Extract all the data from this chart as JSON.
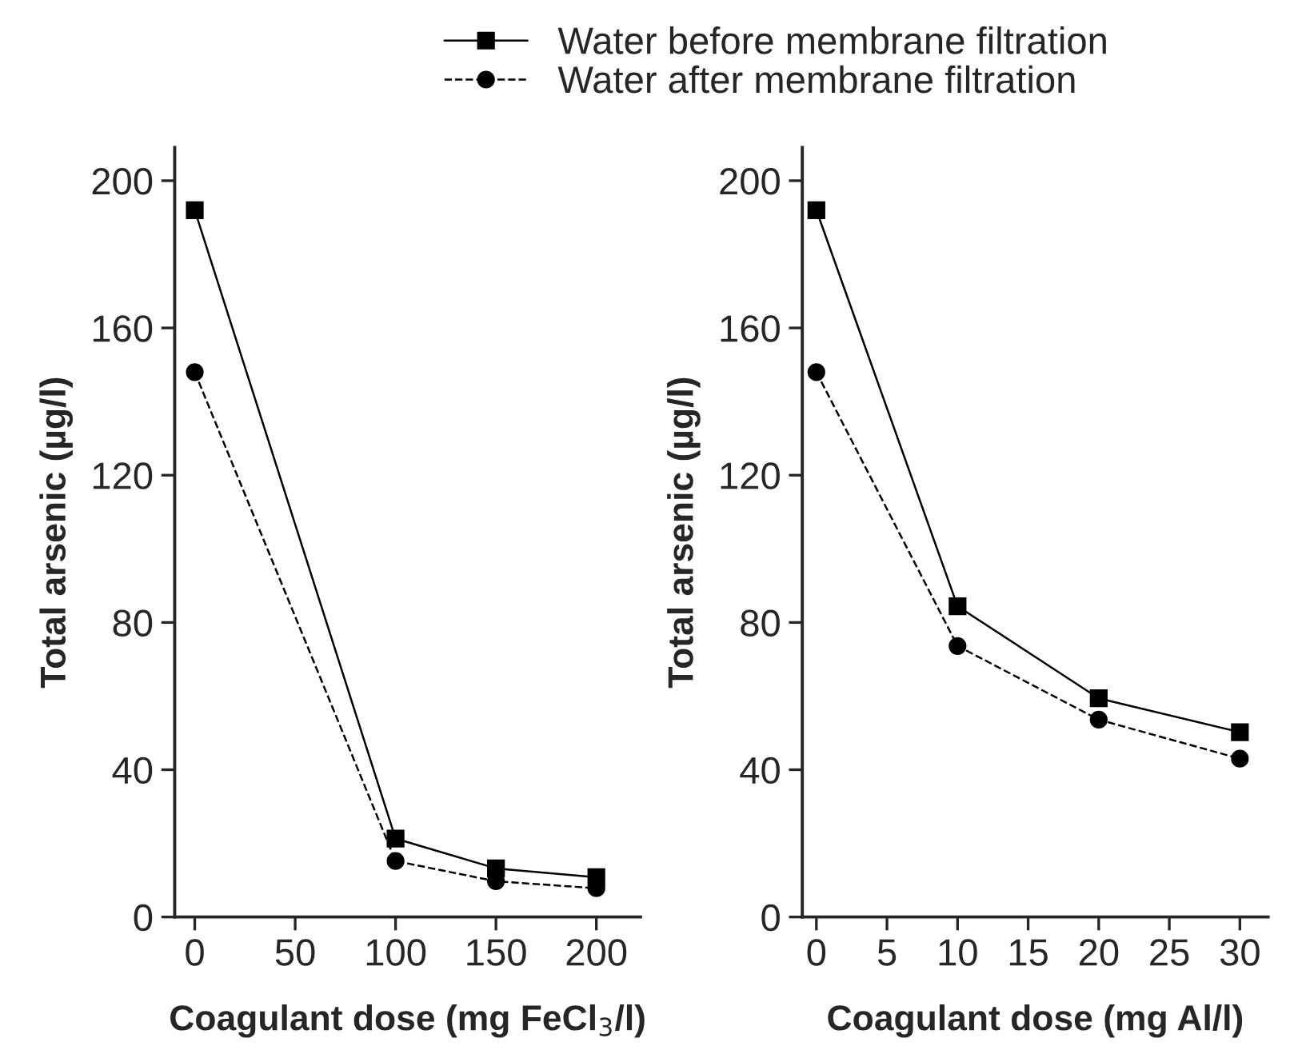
{
  "chart_data": [
    {
      "type": "line",
      "xlabel": "Coagulant dose (mg FeCl$_{3}$/l)",
      "ylabel": "Total arsenic (µg/l)",
      "x": [
        0,
        100,
        150,
        200
      ],
      "xlim": [
        -10,
        222
      ],
      "xticks": [
        0,
        50,
        100,
        150,
        200
      ],
      "ylim": [
        0,
        209
      ],
      "yticks": [
        0,
        40,
        80,
        120,
        160,
        200
      ],
      "grid": false,
      "legend": "top",
      "series": [
        {
          "name": "Water before membrane filtration",
          "color": "#000000",
          "marker": "square",
          "line_style": "solid",
          "values": [
            192,
            21.3,
            13.2,
            10.8
          ]
        },
        {
          "name": "Water after membrane filtration",
          "color": "#000000",
          "marker": "circle",
          "line_style": "dashed",
          "values": [
            148,
            15.2,
            9.7,
            7.8
          ]
        }
      ]
    },
    {
      "type": "line",
      "xlabel": "Coagulant dose (mg Al/l)",
      "ylabel": "Total arsenic (µg/l)",
      "x": [
        0,
        10,
        20,
        30
      ],
      "xlim": [
        -1,
        32
      ],
      "xticks": [
        0,
        5,
        10,
        15,
        20,
        25,
        30
      ],
      "ylim": [
        0,
        209
      ],
      "yticks": [
        0,
        40,
        80,
        120,
        160,
        200
      ],
      "grid": false,
      "series": [
        {
          "color": "#000000",
          "marker": "square",
          "line_style": "solid",
          "values": [
            192,
            84.4,
            59.4,
            50.2
          ]
        },
        {
          "color": "#000000",
          "marker": "circle",
          "line_style": "dashed",
          "values": [
            148,
            73.6,
            53.6,
            43
          ]
        }
      ]
    }
  ]
}
